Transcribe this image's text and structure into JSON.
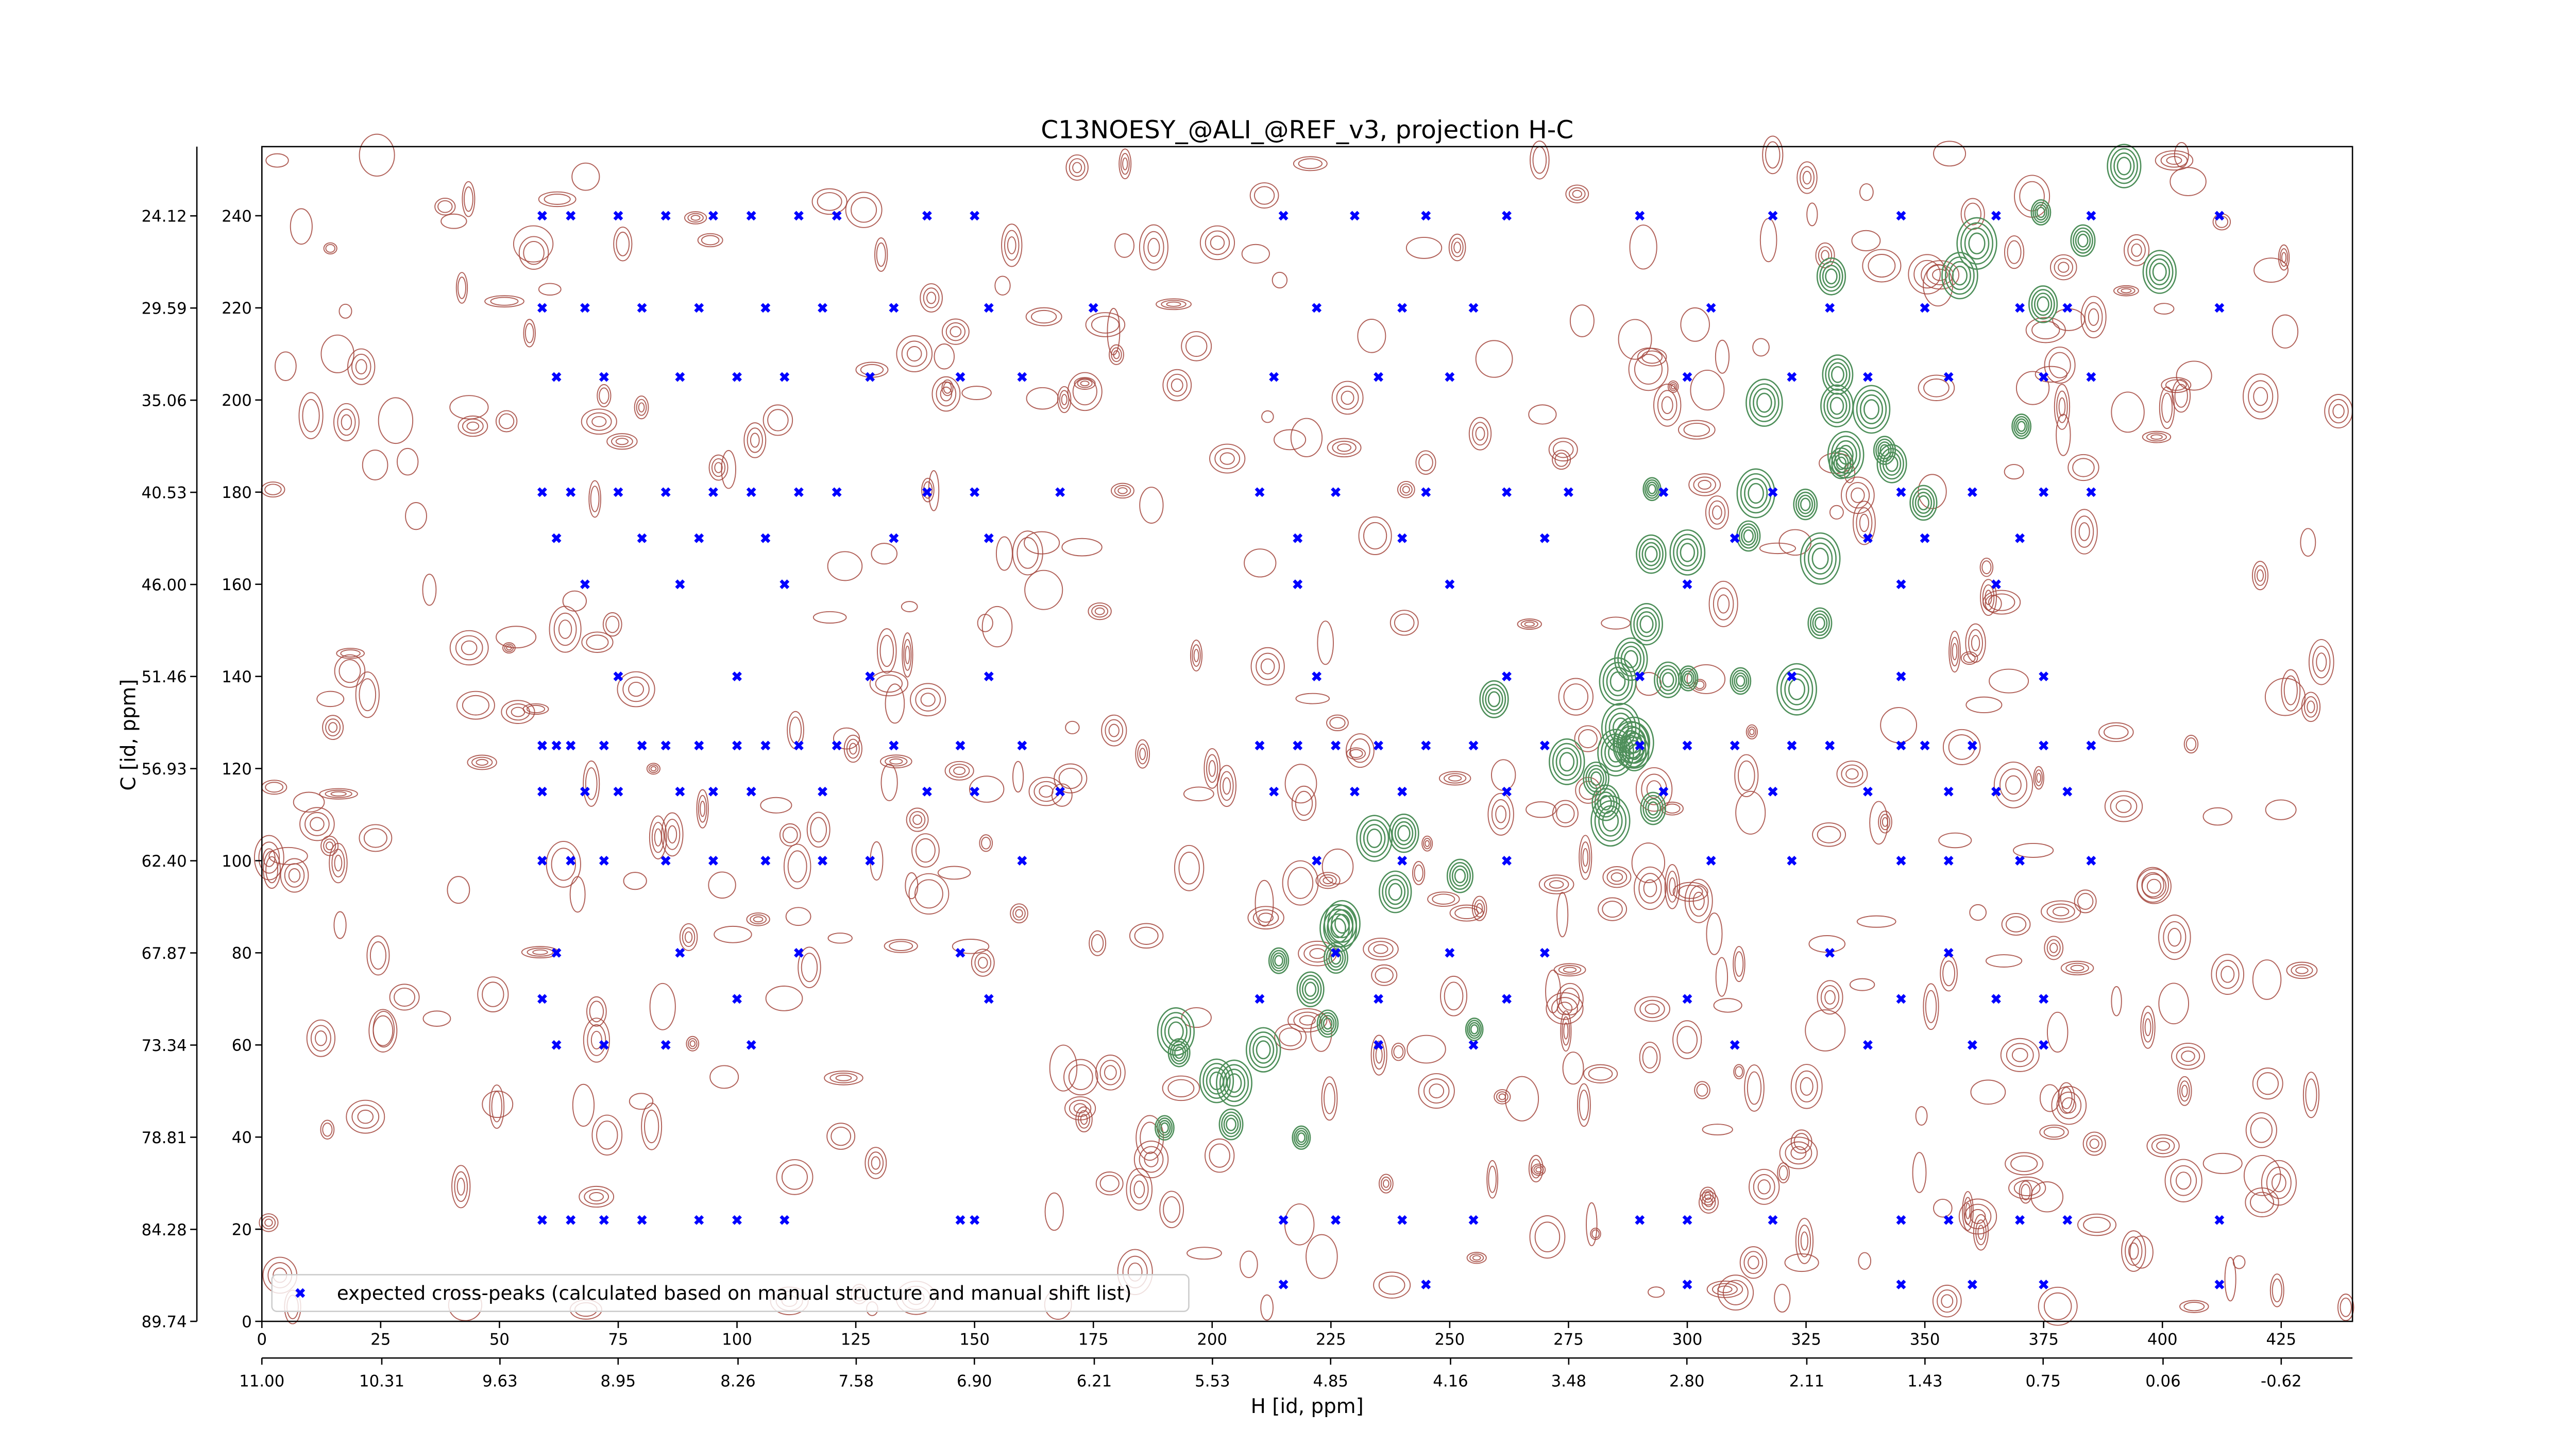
{
  "chart_data": {
    "type": "scatter",
    "title": "C13NOESY_@ALI_@REF_v3, projection H-C",
    "x_label": "H [id, ppm]",
    "y_label": "C [id, ppm]",
    "xlim": [
      0,
      440
    ],
    "ylim": [
      0,
      255
    ],
    "xticks": [
      0,
      25,
      50,
      75,
      100,
      125,
      150,
      175,
      200,
      225,
      250,
      275,
      300,
      325,
      350,
      375,
      400,
      425
    ],
    "yticks": [
      0,
      20,
      40,
      60,
      80,
      100,
      120,
      140,
      160,
      180,
      200,
      220,
      240
    ],
    "x2lim": [
      11,
      -1.03
    ],
    "x2ticks": [
      {
        "value": 11,
        "label": "11.00"
      },
      10.31,
      9.63,
      8.95,
      8.26,
      7.58,
      {
        "value": 6.9,
        "label": "6.90"
      },
      6.21,
      5.53,
      4.85,
      4.16,
      3.48,
      {
        "value": 2.8,
        "label": "2.80"
      },
      2.11,
      1.43,
      0.75,
      0.06,
      -0.62
    ],
    "y2lim": [
      89.74,
      20.01
    ],
    "y2ticks": [
      89.74,
      84.28,
      78.81,
      73.34,
      67.87,
      {
        "value": 62.4,
        "label": "62.40"
      },
      56.93,
      51.46,
      {
        "value": 46,
        "label": "46.00"
      },
      40.53,
      35.06,
      29.59,
      24.12
    ],
    "legend": "lower left",
    "series": [
      {
        "name": "expected cross-peaks (calculated based on manual structure and manual shift list)",
        "color": "#0000ff",
        "x": [
          59,
          65,
          75,
          85,
          95,
          103,
          113,
          121,
          140,
          150,
          215,
          230,
          245,
          262,
          290,
          318,
          345,
          365,
          385,
          412,
          59,
          68,
          80,
          92,
          106,
          118,
          133,
          153,
          175,
          222,
          240,
          255,
          305,
          330,
          350,
          370,
          380,
          412,
          62,
          72,
          88,
          100,
          110,
          128,
          147,
          160,
          213,
          235,
          250,
          300,
          322,
          338,
          355,
          375,
          385,
          59,
          65,
          75,
          85,
          95,
          103,
          113,
          121,
          140,
          150,
          168,
          210,
          226,
          245,
          262,
          275,
          295,
          318,
          345,
          360,
          375,
          385,
          62,
          80,
          92,
          106,
          133,
          153,
          218,
          240,
          270,
          310,
          338,
          350,
          370,
          68,
          88,
          110,
          218,
          250,
          300,
          345,
          365,
          75,
          100,
          128,
          153,
          222,
          262,
          290,
          322,
          345,
          375,
          59,
          62,
          65,
          72,
          80,
          85,
          92,
          100,
          106,
          113,
          121,
          133,
          147,
          160,
          210,
          218,
          226,
          235,
          245,
          255,
          270,
          290,
          300,
          310,
          322,
          330,
          345,
          350,
          360,
          375,
          385,
          59,
          68,
          75,
          88,
          95,
          103,
          118,
          140,
          150,
          168,
          213,
          230,
          240,
          262,
          295,
          318,
          338,
          355,
          365,
          380,
          59,
          65,
          72,
          85,
          95,
          106,
          118,
          128,
          160,
          222,
          240,
          262,
          305,
          322,
          345,
          355,
          370,
          385,
          62,
          88,
          113,
          147,
          226,
          250,
          270,
          330,
          355,
          59,
          100,
          153,
          210,
          235,
          262,
          300,
          345,
          365,
          375,
          62,
          72,
          85,
          103,
          235,
          255,
          310,
          338,
          360,
          375,
          59,
          65,
          72,
          80,
          92,
          100,
          110,
          147,
          150,
          215,
          226,
          240,
          255,
          290,
          300,
          318,
          345,
          355,
          370,
          380,
          412,
          215,
          245,
          300,
          345,
          360,
          375,
          412
        ],
        "values": [
          240,
          240,
          240,
          240,
          240,
          240,
          240,
          240,
          240,
          240,
          240,
          240,
          240,
          240,
          240,
          240,
          240,
          240,
          240,
          240,
          220,
          220,
          220,
          220,
          220,
          220,
          220,
          220,
          220,
          220,
          220,
          220,
          220,
          220,
          220,
          220,
          220,
          220,
          205,
          205,
          205,
          205,
          205,
          205,
          205,
          205,
          205,
          205,
          205,
          205,
          205,
          205,
          205,
          205,
          205,
          180,
          180,
          180,
          180,
          180,
          180,
          180,
          180,
          180,
          180,
          180,
          180,
          180,
          180,
          180,
          180,
          180,
          180,
          180,
          180,
          180,
          180,
          170,
          170,
          170,
          170,
          170,
          170,
          170,
          170,
          170,
          170,
          170,
          170,
          170,
          160,
          160,
          160,
          160,
          160,
          160,
          160,
          160,
          140,
          140,
          140,
          140,
          140,
          140,
          140,
          140,
          140,
          140,
          125,
          125,
          125,
          125,
          125,
          125,
          125,
          125,
          125,
          125,
          125,
          125,
          125,
          125,
          125,
          125,
          125,
          125,
          125,
          125,
          125,
          125,
          125,
          125,
          125,
          125,
          125,
          125,
          125,
          125,
          125,
          115,
          115,
          115,
          115,
          115,
          115,
          115,
          115,
          115,
          115,
          115,
          115,
          115,
          115,
          115,
          115,
          115,
          115,
          115,
          115,
          100,
          100,
          100,
          100,
          100,
          100,
          100,
          100,
          100,
          100,
          100,
          100,
          100,
          100,
          100,
          100,
          100,
          100,
          80,
          80,
          80,
          80,
          80,
          80,
          80,
          80,
          80,
          70,
          70,
          70,
          70,
          70,
          70,
          70,
          70,
          70,
          70,
          60,
          60,
          60,
          60,
          60,
          60,
          60,
          60,
          60,
          60,
          22,
          22,
          22,
          22,
          22,
          22,
          22,
          22,
          22,
          22,
          22,
          22,
          22,
          22,
          22,
          22,
          22,
          22,
          22,
          22,
          22,
          8,
          8,
          8,
          8,
          8,
          8,
          8
        ]
      }
    ]
  }
}
